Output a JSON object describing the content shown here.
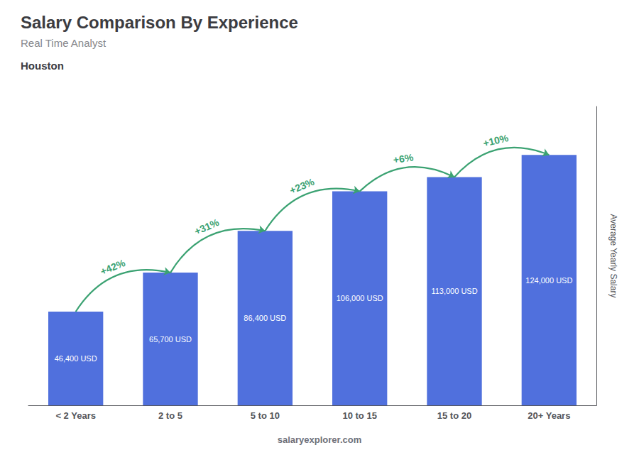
{
  "chart_data": {
    "type": "bar",
    "title": "Salary Comparison By Experience",
    "subtitle": "Real Time Analyst",
    "city": "Houston",
    "ylabel": "Average Yearly Salary",
    "watermark": [
      "salary",
      "explorer.com"
    ],
    "categories": [
      "< 2 Years",
      "2 to 5",
      "5 to 10",
      "10 to 15",
      "15 to 20",
      "20+ Years"
    ],
    "values": [
      46400,
      65700,
      86400,
      106000,
      113000,
      124000
    ],
    "value_labels": [
      "46,400 USD",
      "65,700 USD",
      "86,400 USD",
      "106,000 USD",
      "113,000 USD",
      "124,000 USD"
    ],
    "data_labels": true,
    "ylim": [
      0,
      148000
    ],
    "tick_labels": "x",
    "grid": false,
    "annotations": [
      {
        "from": "< 2 Years",
        "to": "2 to 5",
        "text": "+42%",
        "color": "#3ba272"
      },
      {
        "from": "2 to 5",
        "to": "5 to 10",
        "text": "+31%",
        "color": "#3ba272"
      },
      {
        "from": "5 to 10",
        "to": "10 to 15",
        "text": "+23%",
        "color": "#3ba272"
      },
      {
        "from": "10 to 15",
        "to": "15 to 20",
        "text": "+6%",
        "color": "#3ba272"
      },
      {
        "from": "15 to 20",
        "to": "20+ Years",
        "text": "+10%",
        "color": "#3ba272"
      }
    ]
  }
}
